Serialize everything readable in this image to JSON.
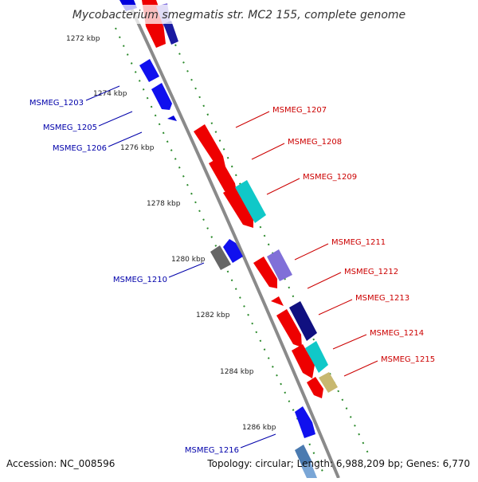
{
  "title": "Mycobacterium smegmatis str. MC2 155, complete genome",
  "footer": {
    "accession": "Accession: NC_008596",
    "summary": "Topology: circular; Length: 6,988,209 bp; Genes: 6,770"
  },
  "colors": {
    "backbone": "#8a8a8a",
    "ticks": "#2b8a2b",
    "label_fwd": "#cc0000",
    "label_rev": "#0000aa"
  },
  "ticks": [
    "1272 kbp",
    "1274 kbp",
    "1276 kbp",
    "1278 kbp",
    "1280 kbp",
    "1282 kbp",
    "1284 kbp",
    "1286 kbp"
  ],
  "genes_forward": [
    {
      "label": "MSMEG_1207"
    },
    {
      "label": "MSMEG_1208"
    },
    {
      "label": "MSMEG_1209"
    },
    {
      "label": "MSMEG_1211"
    },
    {
      "label": "MSMEG_1212"
    },
    {
      "label": "MSMEG_1213"
    },
    {
      "label": "MSMEG_1214"
    },
    {
      "label": "MSMEG_1215"
    }
  ],
  "genes_reverse": [
    {
      "label": "MSMEG_1203"
    },
    {
      "label": "MSMEG_1205"
    },
    {
      "label": "MSMEG_1206"
    },
    {
      "label": "MSMEG_1210"
    },
    {
      "label": "MSMEG_1216"
    }
  ]
}
